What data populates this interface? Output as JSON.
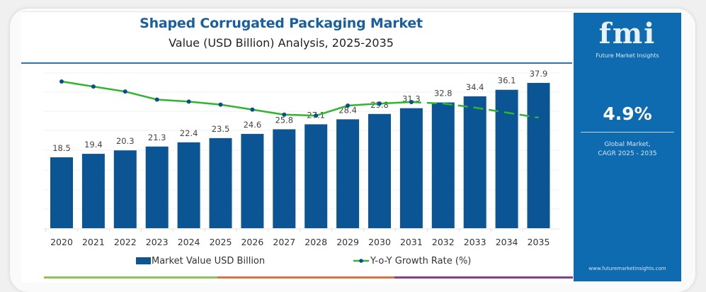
{
  "header": {
    "title": "Shaped Corrugated Packaging Market",
    "subtitle": "Value (USD Billion) Analysis, 2025-2035"
  },
  "sidebar": {
    "logo_text": "fmi",
    "logo_subtitle": "Future Market Insights",
    "cagr_value": "4.9%",
    "cagr_label_line1": "Global Market,",
    "cagr_label_line2": "CAGR 2025 - 2035",
    "website": "www.futuremarketinsights.com"
  },
  "colors": {
    "bar": "#0b5594",
    "line": "#2fb52f",
    "marker": "#0b4f8a",
    "title": "#1a5f9e",
    "sidebar": "#0e6bb0",
    "strip": [
      "#8fc35a",
      "#e2703f",
      "#8a3d8f"
    ]
  },
  "chart_data": {
    "type": "bar",
    "title": "Shaped Corrugated Packaging Market",
    "subtitle": "Value (USD Billion) Analysis, 2025-2035",
    "xlabel": "",
    "ylabel": "",
    "categories": [
      "2020",
      "2021",
      "2022",
      "2023",
      "2024",
      "2025",
      "2026",
      "2027",
      "2028",
      "2029",
      "2030",
      "2031",
      "2032",
      "2033",
      "2034",
      "2035"
    ],
    "series": [
      {
        "name": "Market Value USD Billion",
        "type": "bar",
        "values": [
          18.5,
          19.4,
          20.3,
          21.3,
          22.4,
          23.5,
          24.6,
          25.8,
          27.1,
          28.4,
          29.8,
          31.3,
          32.8,
          34.4,
          36.1,
          37.9
        ],
        "labels": [
          "18.5",
          "19.4",
          "20.3",
          "21.3",
          "22.4",
          "23.5",
          "24.6",
          "25.8",
          "27.1",
          "28.4",
          "29.8",
          "31.3",
          "32.8",
          "34.4",
          "36.1",
          "37.9"
        ]
      },
      {
        "name": "Y-o-Y Growth Rate (%)",
        "type": "line",
        "values": [
          5.6,
          5.5,
          5.4,
          5.24,
          5.2,
          5.14,
          5.04,
          4.94,
          4.92,
          5.12,
          5.16,
          5.19,
          5.16,
          5.08,
          4.98,
          4.88
        ],
        "solid_until": "2031",
        "dashed_from": "2031"
      }
    ],
    "ylim": [
      0,
      40
    ],
    "grid": true,
    "legend": "bottom-center",
    "legend_entries": [
      "Market Value USD Billion",
      "Y-o-Y Growth Rate (%)"
    ]
  }
}
